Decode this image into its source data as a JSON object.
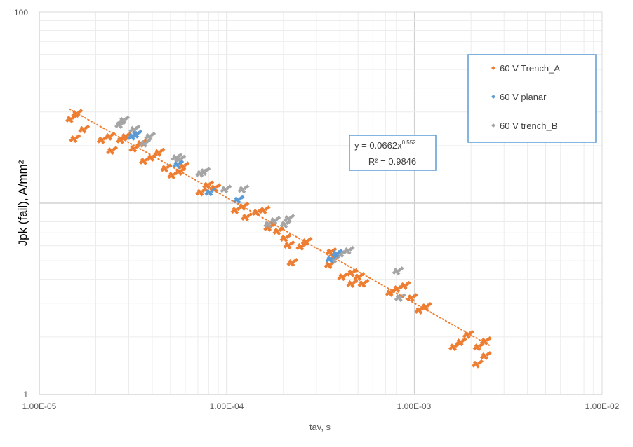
{
  "chart_data": {
    "type": "scatter",
    "title": "",
    "xlabel": "tav, s",
    "ylabel": "Jpk (fail),  A/mm²",
    "x_scale": "log",
    "y_scale": "log",
    "xlim": [
      1e-05,
      0.01
    ],
    "ylim": [
      1,
      100
    ],
    "x_ticks": [
      {
        "value": 1e-05,
        "label": "1.00E-05"
      },
      {
        "value": 0.0001,
        "label": "1.00E-04"
      },
      {
        "value": 0.001,
        "label": "1.00E-03"
      },
      {
        "value": 0.01,
        "label": "1.00E-02"
      }
    ],
    "y_ticks": [
      {
        "value": 1,
        "label": "1"
      },
      {
        "value": 100,
        "label": "100"
      }
    ],
    "grid": true,
    "legend_position": "top-right",
    "trendline": {
      "type": "power",
      "coefficient": 0.0662,
      "exponent": -0.552,
      "x_range": [
        1.45e-05,
        0.0025
      ],
      "color": "#ED7D31",
      "equation_label": "y = 0.0662x",
      "exponent_label": "0.552",
      "r2_label": "R² = 0.9846"
    },
    "series": [
      {
        "name": "60 V Trench_A",
        "color": "#ED7D31",
        "points": [
          [
            1.46e-05,
            27.5
          ],
          [
            1.57e-05,
            29.4
          ],
          [
            1.53e-05,
            21.7
          ],
          [
            1.71e-05,
            24.3
          ],
          [
            2.15e-05,
            21.4
          ],
          [
            2.35e-05,
            22.3
          ],
          [
            2.41e-05,
            18.8
          ],
          [
            2.72e-05,
            21.4
          ],
          [
            2.86e-05,
            22.3
          ],
          [
            3.18e-05,
            19.3
          ],
          [
            3.46e-05,
            20.5
          ],
          [
            3.61e-05,
            16.6
          ],
          [
            3.94e-05,
            17.3
          ],
          [
            4.3e-05,
            18.4
          ],
          [
            4.68e-05,
            15.2
          ],
          [
            5.1e-05,
            14.0
          ],
          [
            5.56e-05,
            14.6
          ],
          [
            5.81e-05,
            15.6
          ],
          [
            7.21e-05,
            11.4
          ],
          [
            7.85e-05,
            12.4
          ],
          [
            8.57e-05,
            12.0
          ],
          [
            0.000111,
            9.18
          ],
          [
            0.000121,
            9.59
          ],
          [
            0.000126,
            8.45
          ],
          [
            0.000144,
            8.96
          ],
          [
            0.000157,
            9.18
          ],
          [
            0.000166,
            7.45
          ],
          [
            0.000186,
            7.14
          ],
          [
            0.000203,
            6.56
          ],
          [
            0.000212,
            6.03
          ],
          [
            0.000247,
            5.93
          ],
          [
            0.000263,
            6.29
          ],
          [
            0.000221,
            4.88
          ],
          [
            0.000355,
            5.55
          ],
          [
            0.000349,
            4.76
          ],
          [
            0.000411,
            4.12
          ],
          [
            0.00046,
            4.31
          ],
          [
            0.000501,
            4.12
          ],
          [
            0.000528,
            3.79
          ],
          [
            0.00046,
            3.79
          ],
          [
            0.000739,
            3.4
          ],
          [
            0.000806,
            3.57
          ],
          [
            0.000879,
            3.7
          ],
          [
            0.000958,
            3.2
          ],
          [
            0.00106,
            2.75
          ],
          [
            0.00114,
            2.87
          ],
          [
            0.00161,
            1.77
          ],
          [
            0.00175,
            1.88
          ],
          [
            0.00191,
            2.05
          ],
          [
            0.00217,
            1.77
          ],
          [
            0.00237,
            1.9
          ],
          [
            0.00214,
            1.44
          ],
          [
            0.00237,
            1.59
          ]
        ]
      },
      {
        "name": "60 V planar",
        "color": "#5B9BD5",
        "points": [
          [
            3.12e-05,
            22.3
          ],
          [
            3.26e-05,
            22.9
          ],
          [
            5.42e-05,
            15.9
          ],
          [
            8.06e-05,
            11.4
          ],
          [
            0.000114,
            10.4
          ],
          [
            0.000355,
            5.09
          ],
          [
            0.000381,
            5.45
          ]
        ]
      },
      {
        "name": "60 V trench_B",
        "color": "#A5A5A5",
        "points": [
          [
            2.67e-05,
            25.7
          ],
          [
            2.79e-05,
            27.1
          ],
          [
            3.18e-05,
            24.3
          ],
          [
            3.61e-05,
            20.5
          ],
          [
            3.84e-05,
            22.3
          ],
          [
            5.33e-05,
            17.3
          ],
          [
            5.56e-05,
            16.9
          ],
          [
            7.21e-05,
            14.3
          ],
          [
            7.52e-05,
            14.6
          ],
          [
            9.75e-05,
            11.8
          ],
          [
            0.000121,
            11.8
          ],
          [
            0.000166,
            7.76
          ],
          [
            0.000178,
            8.1
          ],
          [
            0.000203,
            7.76
          ],
          [
            0.000212,
            8.3
          ],
          [
            0.000371,
            5.09
          ],
          [
            0.000404,
            5.45
          ],
          [
            0.000441,
            5.64
          ],
          [
            0.000806,
            4.41
          ],
          [
            0.000828,
            3.2
          ]
        ]
      }
    ]
  }
}
